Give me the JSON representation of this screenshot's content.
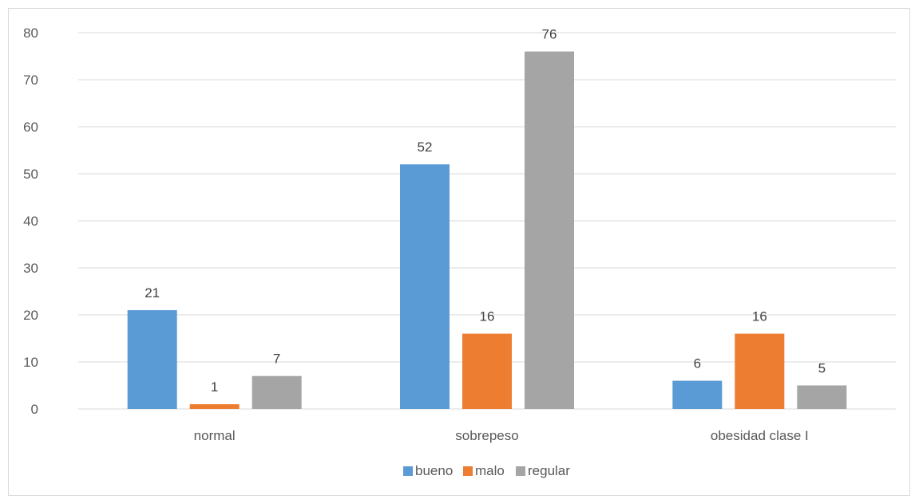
{
  "chart_data": {
    "type": "bar",
    "categories": [
      "normal",
      "sobrepeso",
      "obesidad clase I"
    ],
    "series": [
      {
        "name": "bueno",
        "color": "#5b9bd5",
        "values": [
          21,
          52,
          6
        ]
      },
      {
        "name": "malo",
        "color": "#ed7d31",
        "values": [
          1,
          16,
          16
        ]
      },
      {
        "name": "regular",
        "color": "#a5a5a5",
        "values": [
          7,
          76,
          5
        ]
      }
    ],
    "ylim": [
      0,
      80
    ],
    "yticks": [
      0,
      10,
      20,
      30,
      40,
      50,
      60,
      70,
      80
    ],
    "grid": true,
    "legend_position": "bottom"
  }
}
